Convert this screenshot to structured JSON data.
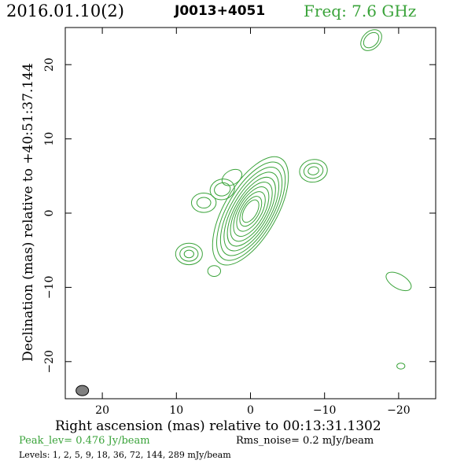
{
  "header": {
    "date": "2016.01.10(2)",
    "source": "J0013+4051",
    "freq": "Freq: 7.6 GHz"
  },
  "footer": {
    "peak": "Peak_lev=  0.476 Jy/beam",
    "rms": "Rms_noise=  0.2 mJy/beam",
    "levels": "Levels:   1,   2,   5,   9,  18,  36,  72, 144, 289 mJy/beam"
  },
  "colors": {
    "contour": "#3aa33a",
    "beam": "#808080"
  },
  "chart_data": {
    "type": "contour",
    "title": "J0013+4051",
    "xlabel": "Right ascension (mas) relative to 00:13:31.1302",
    "ylabel": "Declination (mas) relative to +40:51:37.144",
    "xlim": [
      25,
      -25
    ],
    "ylim": [
      -25,
      25
    ],
    "x_ticks": [
      20,
      10,
      0,
      -10,
      -20
    ],
    "y_ticks": [
      20,
      10,
      0,
      -10,
      -20
    ],
    "x_tick_labels": [
      "20",
      "10",
      "0",
      "−10",
      "−20"
    ],
    "y_tick_labels": [
      "20",
      "10",
      "0",
      "−10",
      "−20"
    ],
    "levels_mJy": [
      1,
      2,
      5,
      9,
      18,
      36,
      72,
      144,
      289
    ],
    "peak_Jy_per_beam": 0.476,
    "rms_mJy_per_beam": 0.2,
    "core": {
      "x": 0,
      "y": 0.3,
      "pa_deg": 30
    },
    "components": [
      {
        "x": -16.3,
        "y": 23.3
      },
      {
        "x": 2.5,
        "y": 4.8
      },
      {
        "x": 3.8,
        "y": 3.2
      },
      {
        "x": 6.3,
        "y": 1.4
      },
      {
        "x": -8.5,
        "y": 5.7
      },
      {
        "x": 8.3,
        "y": -5.5
      },
      {
        "x": 4.9,
        "y": -7.8
      },
      {
        "x": -20.0,
        "y": -9.2
      },
      {
        "x": -20.3,
        "y": -20.6
      }
    ],
    "beam": {
      "x": 22.7,
      "y": -23.9
    }
  }
}
